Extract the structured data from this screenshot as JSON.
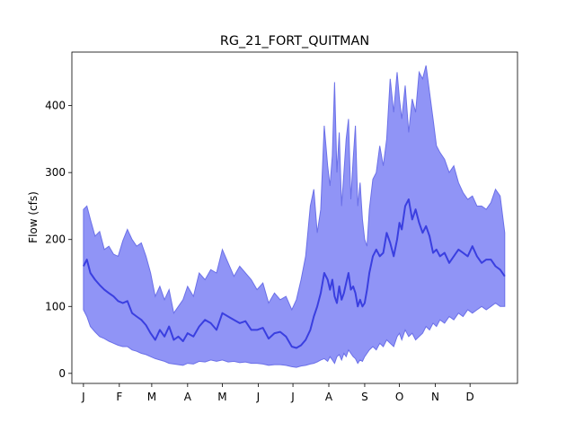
{
  "chart_data": {
    "type": "area",
    "title": "RG_21_FORT_QUITMAN",
    "xlabel": "",
    "ylabel": "Flow (cfs)",
    "xlim": [
      -10,
      375
    ],
    "ylim": [
      -15,
      480
    ],
    "x_ticks": [
      {
        "label": "J",
        "day": 0
      },
      {
        "label": "F",
        "day": 31
      },
      {
        "label": "M",
        "day": 59
      },
      {
        "label": "A",
        "day": 90
      },
      {
        "label": "M",
        "day": 120
      },
      {
        "label": "J",
        "day": 151
      },
      {
        "label": "J",
        "day": 181
      },
      {
        "label": "A",
        "day": 212
      },
      {
        "label": "S",
        "day": 243
      },
      {
        "label": "O",
        "day": 273
      },
      {
        "label": "N",
        "day": 304
      },
      {
        "label": "D",
        "day": 334
      }
    ],
    "y_ticks": [
      0,
      100,
      200,
      300,
      400
    ],
    "grid": false,
    "colors": {
      "band": "#8a8ef5",
      "band_edge": "#6b70e8",
      "median": "#3a3fe0"
    },
    "series": [
      {
        "role": "upper",
        "x": [
          0,
          3,
          6,
          10,
          14,
          18,
          22,
          26,
          30,
          34,
          38,
          42,
          46,
          50,
          54,
          58,
          62,
          66,
          70,
          74,
          78,
          82,
          86,
          90,
          95,
          100,
          105,
          110,
          115,
          120,
          125,
          130,
          135,
          140,
          145,
          150,
          155,
          160,
          165,
          170,
          175,
          180,
          184,
          188,
          192,
          196,
          199,
          202,
          205,
          208,
          211,
          213,
          215,
          217,
          219,
          221,
          223,
          225,
          227,
          229,
          231,
          233,
          235,
          237,
          239,
          241,
          243,
          245,
          247,
          250,
          253,
          256,
          259,
          262,
          265,
          268,
          271,
          273,
          275,
          278,
          281,
          284,
          287,
          290,
          293,
          296,
          299,
          302,
          305,
          308,
          312,
          316,
          320,
          324,
          328,
          332,
          336,
          340,
          344,
          348,
          352,
          356,
          360,
          364
        ],
        "y": [
          245,
          250,
          230,
          205,
          212,
          185,
          190,
          178,
          175,
          198,
          215,
          200,
          190,
          195,
          175,
          150,
          115,
          130,
          110,
          125,
          90,
          100,
          110,
          130,
          115,
          150,
          140,
          155,
          150,
          185,
          165,
          145,
          160,
          150,
          140,
          125,
          135,
          105,
          120,
          110,
          115,
          95,
          110,
          140,
          175,
          250,
          275,
          210,
          245,
          370,
          310,
          280,
          325,
          435,
          300,
          360,
          250,
          300,
          350,
          380,
          260,
          320,
          370,
          250,
          285,
          230,
          200,
          190,
          245,
          290,
          300,
          340,
          310,
          350,
          440,
          390,
          450,
          410,
          380,
          430,
          360,
          410,
          390,
          450,
          440,
          460,
          420,
          380,
          340,
          330,
          320,
          300,
          310,
          285,
          270,
          260,
          265,
          250,
          250,
          245,
          255,
          275,
          265,
          210
        ]
      },
      {
        "role": "median",
        "x": [
          0,
          3,
          6,
          10,
          14,
          18,
          22,
          26,
          30,
          34,
          38,
          42,
          46,
          50,
          54,
          58,
          62,
          66,
          70,
          74,
          78,
          82,
          86,
          90,
          95,
          100,
          105,
          110,
          115,
          120,
          125,
          130,
          135,
          140,
          145,
          150,
          155,
          160,
          165,
          170,
          175,
          180,
          184,
          188,
          192,
          196,
          199,
          202,
          205,
          208,
          211,
          213,
          215,
          217,
          219,
          221,
          223,
          225,
          227,
          229,
          231,
          233,
          235,
          237,
          239,
          241,
          243,
          245,
          247,
          250,
          253,
          256,
          259,
          262,
          265,
          268,
          271,
          273,
          275,
          278,
          281,
          284,
          287,
          290,
          293,
          296,
          299,
          302,
          305,
          308,
          312,
          316,
          320,
          324,
          328,
          332,
          336,
          340,
          344,
          348,
          352,
          356,
          360,
          364
        ],
        "y": [
          160,
          170,
          150,
          140,
          132,
          125,
          120,
          115,
          108,
          105,
          108,
          90,
          85,
          80,
          72,
          60,
          50,
          65,
          55,
          70,
          50,
          55,
          48,
          60,
          55,
          70,
          80,
          75,
          65,
          90,
          85,
          80,
          75,
          78,
          65,
          65,
          68,
          52,
          60,
          62,
          55,
          40,
          38,
          42,
          50,
          65,
          85,
          100,
          120,
          150,
          140,
          125,
          140,
          115,
          105,
          130,
          110,
          120,
          135,
          150,
          125,
          130,
          120,
          100,
          110,
          100,
          105,
          125,
          150,
          175,
          185,
          175,
          180,
          210,
          195,
          175,
          200,
          225,
          215,
          250,
          260,
          230,
          245,
          225,
          210,
          220,
          205,
          180,
          185,
          175,
          180,
          165,
          175,
          185,
          180,
          175,
          190,
          175,
          165,
          170,
          170,
          160,
          155,
          145
        ]
      },
      {
        "role": "lower",
        "x": [
          0,
          3,
          6,
          10,
          14,
          18,
          22,
          26,
          30,
          34,
          38,
          42,
          46,
          50,
          54,
          58,
          62,
          66,
          70,
          74,
          78,
          82,
          86,
          90,
          95,
          100,
          105,
          110,
          115,
          120,
          125,
          130,
          135,
          140,
          145,
          150,
          155,
          160,
          165,
          170,
          175,
          180,
          184,
          188,
          192,
          196,
          199,
          202,
          205,
          208,
          211,
          213,
          215,
          217,
          219,
          221,
          223,
          225,
          227,
          229,
          231,
          233,
          235,
          237,
          239,
          241,
          243,
          245,
          247,
          250,
          253,
          256,
          259,
          262,
          265,
          268,
          271,
          273,
          275,
          278,
          281,
          284,
          287,
          290,
          293,
          296,
          299,
          302,
          305,
          308,
          312,
          316,
          320,
          324,
          328,
          332,
          336,
          340,
          344,
          348,
          352,
          356,
          360,
          364
        ],
        "y": [
          95,
          85,
          70,
          62,
          55,
          52,
          48,
          45,
          42,
          40,
          40,
          35,
          33,
          30,
          28,
          25,
          22,
          20,
          18,
          15,
          14,
          13,
          12,
          15,
          14,
          18,
          17,
          20,
          18,
          20,
          17,
          18,
          16,
          17,
          15,
          15,
          14,
          12,
          13,
          13,
          12,
          10,
          9,
          11,
          12,
          14,
          15,
          17,
          20,
          22,
          18,
          25,
          20,
          15,
          25,
          28,
          20,
          30,
          25,
          35,
          30,
          25,
          22,
          15,
          20,
          18,
          25,
          30,
          35,
          40,
          35,
          45,
          40,
          50,
          45,
          40,
          55,
          60,
          50,
          65,
          55,
          60,
          50,
          55,
          60,
          70,
          65,
          75,
          70,
          80,
          75,
          85,
          80,
          90,
          85,
          95,
          90,
          95,
          100,
          95,
          100,
          105,
          100,
          100
        ]
      }
    ]
  }
}
